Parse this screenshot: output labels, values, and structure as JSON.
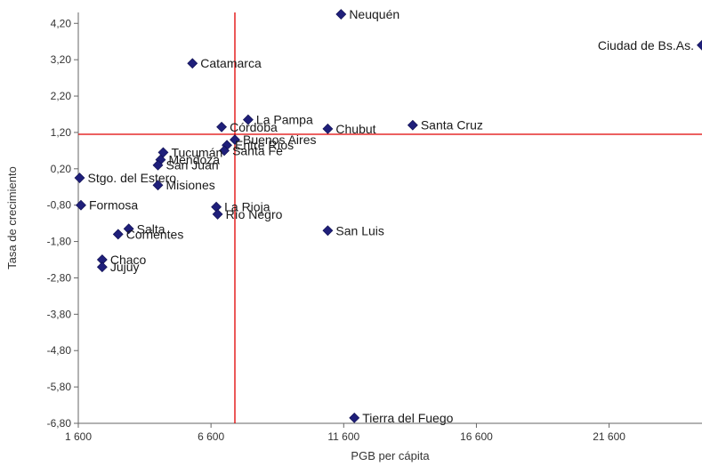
{
  "chart_data": {
    "type": "scatter",
    "title": "",
    "xlabel": "PGB per cápita",
    "ylabel": "Tasa de crecimiento",
    "xlim": [
      1600,
      25100
    ],
    "ylim": [
      -6.8,
      4.5
    ],
    "x_ticks": [
      1600,
      6600,
      11600,
      16600,
      21600
    ],
    "x_tick_labels": [
      "1 600",
      "6 600",
      "11 600",
      "16 600",
      "21 600"
    ],
    "y_ticks": [
      4.2,
      3.2,
      2.2,
      1.2,
      0.2,
      -0.8,
      -1.8,
      -2.8,
      -3.8,
      -4.8,
      -5.8,
      -6.8
    ],
    "y_tick_labels": [
      "4,20",
      "3,20",
      "2,20",
      "1,20",
      "0,20",
      "-0,80",
      "-1,80",
      "-2,80",
      "-3,80",
      "-4,80",
      "-5,80",
      "-6,80"
    ],
    "reference_lines": {
      "x": 7500,
      "y": 1.15
    },
    "colors": {
      "marker": "#1f1f7a",
      "reference_line": "#e00000",
      "axis": "#666666"
    },
    "legend": "none",
    "grid": false,
    "points": [
      {
        "label": "Neuquén",
        "x": 11500,
        "y": 4.45
      },
      {
        "label": "Ciudad de Bs.As.",
        "x": 25100,
        "y": 3.6
      },
      {
        "label": "Catamarca",
        "x": 5900,
        "y": 3.1
      },
      {
        "label": "La Pampa",
        "x": 8000,
        "y": 1.55
      },
      {
        "label": "Córdoba",
        "x": 7000,
        "y": 1.35
      },
      {
        "label": "Chubut",
        "x": 11000,
        "y": 1.3
      },
      {
        "label": "Santa Cruz",
        "x": 14200,
        "y": 1.4
      },
      {
        "label": "Buenos Aires",
        "x": 7500,
        "y": 1.0
      },
      {
        "label": "Entre Ríos",
        "x": 7200,
        "y": 0.85
      },
      {
        "label": "Santa Fe",
        "x": 7100,
        "y": 0.7
      },
      {
        "label": "Tucumán",
        "x": 4800,
        "y": 0.65
      },
      {
        "label": "Mendoza",
        "x": 4700,
        "y": 0.45
      },
      {
        "label": "San Juan",
        "x": 4600,
        "y": 0.3
      },
      {
        "label": "Stgo. del Estero",
        "x": 1650,
        "y": -0.05
      },
      {
        "label": "Misiones",
        "x": 4600,
        "y": -0.25
      },
      {
        "label": "Formosa",
        "x": 1700,
        "y": -0.8
      },
      {
        "label": "La Rioja",
        "x": 6800,
        "y": -0.85
      },
      {
        "label": "Río Negro",
        "x": 6850,
        "y": -1.05
      },
      {
        "label": "San Luis",
        "x": 11000,
        "y": -1.5
      },
      {
        "label": "Salta",
        "x": 3500,
        "y": -1.45
      },
      {
        "label": "Corrientes",
        "x": 3100,
        "y": -1.6
      },
      {
        "label": "Chaco",
        "x": 2500,
        "y": -2.3
      },
      {
        "label": "Jujuy",
        "x": 2500,
        "y": -2.5
      },
      {
        "label": "Tierra del Fuego",
        "x": 12000,
        "y": -6.65
      }
    ]
  }
}
